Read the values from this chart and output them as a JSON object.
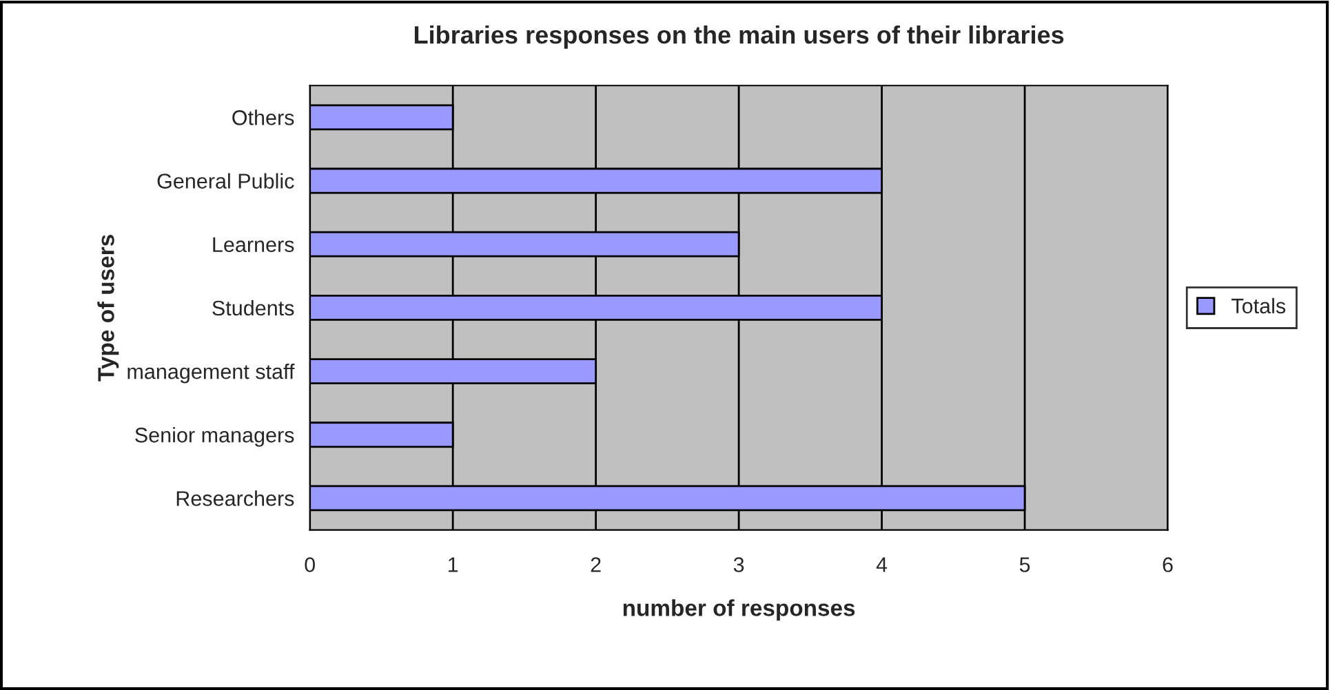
{
  "chart_data": {
    "type": "bar",
    "orientation": "horizontal",
    "title": "Libraries responses on the main users of their libraries",
    "xlabel": "number of responses",
    "ylabel": "Type of users",
    "categories": [
      "Others",
      "General Public",
      "Learners",
      "Students",
      "management staff",
      "Senior managers",
      "Researchers"
    ],
    "series": [
      {
        "name": "Totals",
        "color": "#9999ff",
        "values": [
          1,
          4,
          3,
          4,
          2,
          1,
          5
        ]
      }
    ],
    "xlim": [
      0,
      6
    ],
    "xticks": [
      0,
      1,
      2,
      3,
      4,
      5,
      6
    ],
    "grid": "x",
    "legend": "right"
  }
}
